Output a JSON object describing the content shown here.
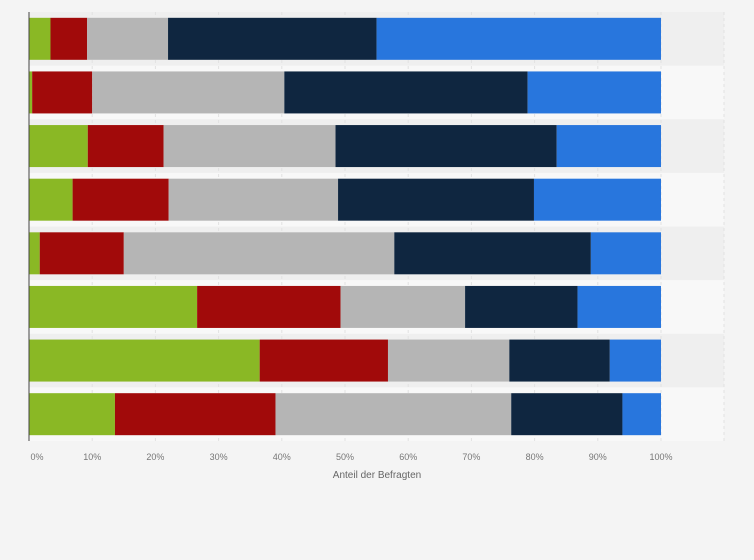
{
  "chart_data": {
    "type": "bar",
    "orientation": "horizontal",
    "stacked": true,
    "title": "",
    "xlabel": "Anteil der Befragten",
    "ylabel": "",
    "xlim": [
      0,
      100
    ],
    "x_ticks": [
      "0%",
      "10%",
      "20%",
      "30%",
      "40%",
      "50%",
      "60%",
      "70%",
      "80%",
      "90%",
      "100%"
    ],
    "grid": true,
    "legend": "none",
    "categories": [
      "",
      "",
      "",
      "",
      "",
      "",
      "",
      ""
    ],
    "series": [
      {
        "color": "#8ab825",
        "values": [
          3.4,
          0.5,
          9.3,
          6.9,
          1.7,
          26.6,
          36.5,
          13.6
        ]
      },
      {
        "color": "#a10a0a",
        "values": [
          5.8,
          9.5,
          12.0,
          15.2,
          13.3,
          22.7,
          20.3,
          25.4
        ]
      },
      {
        "color": "#b5b5b5",
        "values": [
          12.8,
          30.4,
          27.2,
          26.8,
          42.8,
          19.7,
          19.2,
          37.3
        ]
      },
      {
        "color": "#0f2640",
        "values": [
          33.0,
          38.5,
          35.0,
          31.0,
          31.1,
          17.8,
          15.9,
          17.6
        ]
      },
      {
        "color": "#2876dd",
        "values": [
          45.0,
          21.1,
          16.5,
          20.1,
          11.1,
          13.2,
          8.1,
          6.1
        ]
      }
    ]
  }
}
